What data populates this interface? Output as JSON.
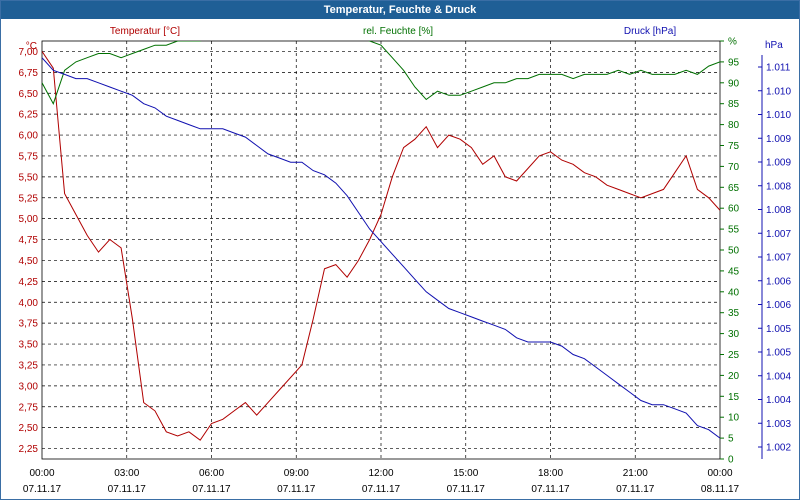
{
  "window": {
    "title": "Temperatur, Feuchte & Druck"
  },
  "colors": {
    "temperature": "#b00000",
    "humidity": "#007000",
    "pressure": "#1010b0",
    "grid": "#000000"
  },
  "chart_data": {
    "type": "line",
    "title": "Temperatur, Feuchte & Druck",
    "grid": true,
    "x_ticks": [
      {
        "time": "00:00",
        "date": "07.11.17"
      },
      {
        "time": "03:00",
        "date": "07.11.17"
      },
      {
        "time": "06:00",
        "date": "07.11.17"
      },
      {
        "time": "09:00",
        "date": "07.11.17"
      },
      {
        "time": "12:00",
        "date": "07.11.17"
      },
      {
        "time": "15:00",
        "date": "07.11.17"
      },
      {
        "time": "18:00",
        "date": "07.11.17"
      },
      {
        "time": "21:00",
        "date": "07.11.17"
      },
      {
        "time": "00:00",
        "date": "08.11.17"
      }
    ],
    "axes": {
      "temperature": {
        "label": "Temperatur [°C]",
        "unit": "°C",
        "ylim": [
          2.125,
          7.125
        ],
        "ticks": [
          "2,25",
          "2,50",
          "2,75",
          "3,00",
          "3,25",
          "3,50",
          "3,75",
          "4,00",
          "4,25",
          "4,50",
          "4,75",
          "5,00",
          "5,25",
          "5,50",
          "5,75",
          "6,00",
          "6,25",
          "6,50",
          "6,75",
          "7,00"
        ]
      },
      "humidity": {
        "label": "rel. Feuchte [%]",
        "unit": "%",
        "ylim": [
          0,
          100
        ],
        "ticks": [
          "0",
          "5",
          "10",
          "15",
          "20",
          "25",
          "30",
          "35",
          "40",
          "45",
          "50",
          "55",
          "60",
          "65",
          "70",
          "75",
          "80",
          "85",
          "90",
          "95",
          "%"
        ]
      },
      "pressure": {
        "label": "Druck [hPa]",
        "unit": "hPa",
        "ticks": [
          "1.002",
          "1.003",
          "1.004",
          "1.004",
          "1.005",
          "1.005",
          "1.006",
          "1.006",
          "1.007",
          "1.007",
          "1.008",
          "1.008",
          "1.009",
          "1.009",
          "1.010",
          "1.010",
          "1.011"
        ]
      }
    },
    "series": [
      {
        "name": "Temperatur [°C]",
        "axis": "temperature",
        "hours": [
          0,
          0.4,
          0.8,
          1.2,
          1.6,
          2.0,
          2.4,
          2.8,
          3.2,
          3.6,
          4.0,
          4.4,
          4.8,
          5.2,
          5.6,
          6.0,
          6.4,
          6.8,
          7.2,
          7.6,
          8.0,
          8.4,
          8.8,
          9.2,
          9.6,
          10.0,
          10.4,
          10.8,
          11.2,
          11.6,
          12.0,
          12.4,
          12.8,
          13.2,
          13.6,
          14.0,
          14.4,
          14.8,
          15.2,
          15.6,
          16.0,
          16.4,
          16.8,
          17.2,
          17.6,
          18.0,
          18.4,
          18.8,
          19.2,
          19.6,
          20.0,
          20.4,
          20.8,
          21.2,
          21.6,
          22.0,
          22.4,
          22.8,
          23.2,
          23.6,
          24.0
        ],
        "values": [
          7.0,
          6.8,
          5.3,
          5.05,
          4.8,
          4.6,
          4.75,
          4.65,
          3.8,
          2.8,
          2.7,
          2.45,
          2.4,
          2.45,
          2.35,
          2.55,
          2.6,
          2.7,
          2.8,
          2.65,
          2.8,
          2.95,
          3.1,
          3.25,
          3.8,
          4.4,
          4.45,
          4.3,
          4.5,
          4.75,
          5.05,
          5.5,
          5.85,
          5.95,
          6.1,
          5.85,
          6.0,
          5.95,
          5.85,
          5.65,
          5.75,
          5.5,
          5.45,
          5.6,
          5.75,
          5.8,
          5.7,
          5.65,
          5.55,
          5.5,
          5.4,
          5.35,
          5.3,
          5.25,
          5.3,
          5.35,
          5.55,
          5.75,
          5.35,
          5.25,
          5.1
        ]
      },
      {
        "name": "rel. Feuchte [%]",
        "axis": "humidity",
        "hours": [
          0,
          0.4,
          0.8,
          1.2,
          1.6,
          2.0,
          2.4,
          2.8,
          3.2,
          3.6,
          4.0,
          4.4,
          4.8,
          5.2,
          5.6,
          6.0,
          6.4,
          6.8,
          7.2,
          7.6,
          8.0,
          8.4,
          8.8,
          9.2,
          9.6,
          10.0,
          10.4,
          10.8,
          11.2,
          11.6,
          12.0,
          12.4,
          12.8,
          13.2,
          13.6,
          14.0,
          14.4,
          14.8,
          15.2,
          15.6,
          16.0,
          16.4,
          16.8,
          17.2,
          17.6,
          18.0,
          18.4,
          18.8,
          19.2,
          19.6,
          20.0,
          20.4,
          20.8,
          21.2,
          21.6,
          22.0,
          22.4,
          22.8,
          23.2,
          23.6,
          24.0
        ],
        "values": [
          90,
          85,
          93,
          95,
          96,
          97,
          97,
          96,
          97,
          98,
          99,
          99,
          100,
          100,
          100,
          101,
          101,
          101,
          101,
          101,
          101,
          101,
          101,
          101,
          101,
          101,
          101,
          101,
          101,
          100,
          99,
          96,
          93,
          89,
          86,
          88,
          87,
          87,
          88,
          89,
          90,
          90,
          91,
          91,
          92,
          92,
          92,
          91,
          92,
          92,
          92,
          93,
          92,
          93,
          92,
          92,
          92,
          93,
          92,
          94,
          95
        ]
      },
      {
        "name": "Druck [hPa]",
        "axis": "pressure",
        "scale": "relative-0-100",
        "hours": [
          0,
          0.4,
          0.8,
          1.2,
          1.6,
          2.0,
          2.4,
          2.8,
          3.2,
          3.6,
          4.0,
          4.4,
          4.8,
          5.2,
          5.6,
          6.0,
          6.4,
          6.8,
          7.2,
          7.6,
          8.0,
          8.4,
          8.8,
          9.2,
          9.6,
          10.0,
          10.4,
          10.8,
          11.2,
          11.6,
          12.0,
          12.4,
          12.8,
          13.2,
          13.6,
          14.0,
          14.4,
          14.8,
          15.2,
          15.6,
          16.0,
          16.4,
          16.8,
          17.2,
          17.6,
          18.0,
          18.4,
          18.8,
          19.2,
          19.6,
          20.0,
          20.4,
          20.8,
          21.2,
          21.6,
          22.0,
          22.4,
          22.8,
          23.2,
          23.6,
          24.0
        ],
        "values": [
          96,
          93,
          92,
          91,
          91,
          90,
          89,
          88,
          87,
          85,
          84,
          82,
          81,
          80,
          79,
          79,
          79,
          78,
          77,
          75,
          73,
          72,
          71,
          71,
          69,
          68,
          66,
          63,
          59,
          55,
          52,
          49,
          46,
          43,
          40,
          38,
          36,
          35,
          34,
          33,
          32,
          31,
          29,
          28,
          28,
          28,
          27,
          25,
          24,
          22,
          20,
          18,
          16,
          14,
          13,
          13,
          12,
          11,
          8,
          7,
          5
        ]
      }
    ]
  }
}
